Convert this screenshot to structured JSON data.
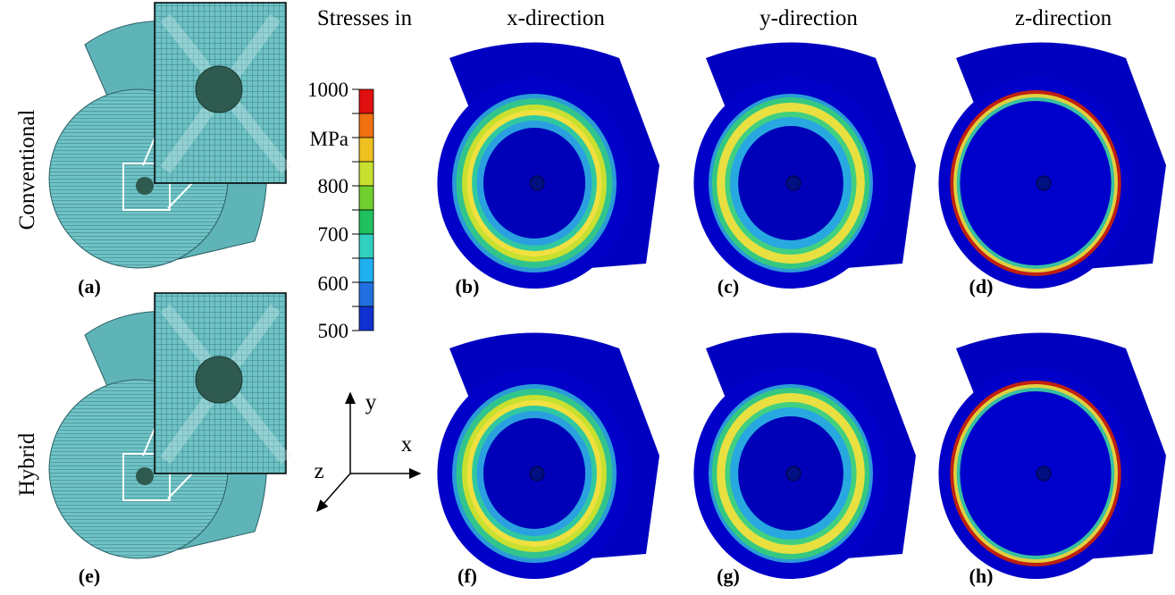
{
  "header": {
    "columns": [
      "Stresses in",
      "x-direction",
      "y-direction",
      "z-direction"
    ]
  },
  "rows": [
    "Conventional",
    "Hybrid"
  ],
  "panels": [
    [
      "(a)",
      "(b)",
      "(c)",
      "(d)"
    ],
    [
      "(e)",
      "(f)",
      "(g)",
      "(h)"
    ]
  ],
  "colorbar": {
    "labels": [
      "1000",
      "MPa",
      "800",
      "700",
      "600",
      "500"
    ]
  },
  "axes": {
    "y": "y",
    "x": "x",
    "z": "z"
  }
}
